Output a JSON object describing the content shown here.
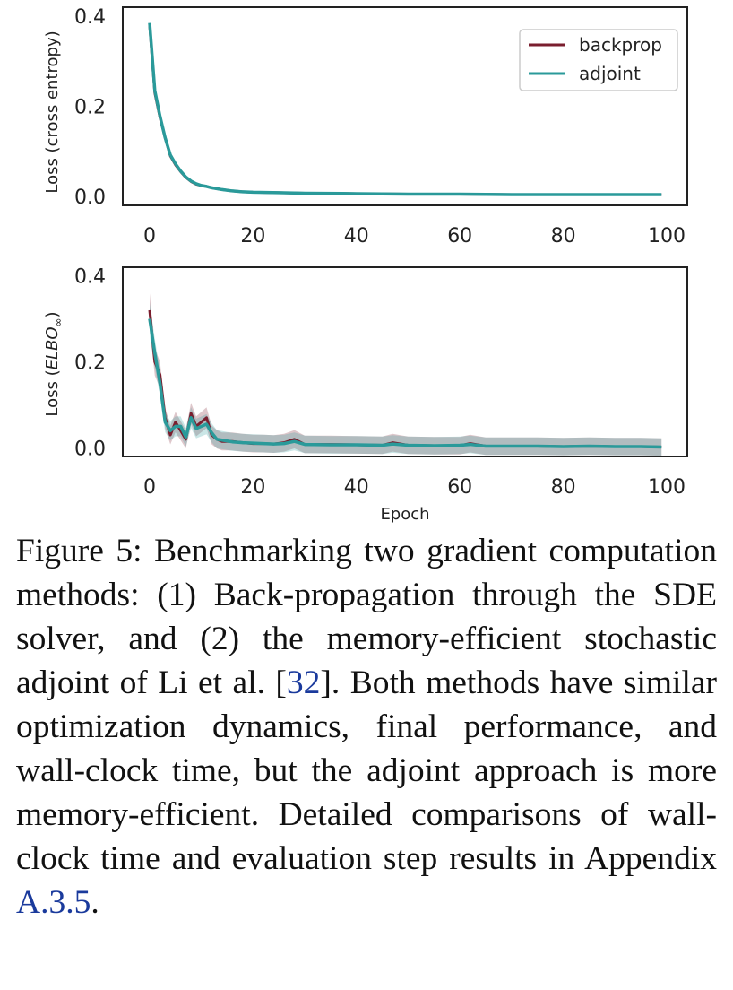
{
  "colors": {
    "backprop": "#7a1e2e",
    "adjoint": "#2a9a9a",
    "axis": "#222222"
  },
  "chart_data": [
    {
      "type": "line",
      "title": "",
      "xlabel": "",
      "ylabel": "Loss (cross entropy)",
      "xlim": [
        0,
        100
      ],
      "ylim": [
        -0.02,
        0.42
      ],
      "xticks": [
        "0",
        "20",
        "40",
        "60",
        "80",
        "100"
      ],
      "yticks": [
        "0.0",
        "0.2",
        "0.4"
      ],
      "legend": {
        "position": "top-right",
        "entries": [
          "backprop",
          "adjoint"
        ]
      },
      "series": [
        {
          "name": "backprop",
          "x": [
            0,
            1,
            2,
            3,
            4,
            5,
            6,
            7,
            8,
            9,
            10,
            11,
            12,
            14,
            16,
            18,
            20,
            25,
            30,
            40,
            50,
            60,
            70,
            80,
            90,
            99
          ],
          "values": [
            0.38,
            0.23,
            0.175,
            0.13,
            0.09,
            0.07,
            0.055,
            0.042,
            0.033,
            0.027,
            0.024,
            0.022,
            0.019,
            0.015,
            0.012,
            0.01,
            0.009,
            0.008,
            0.007,
            0.006,
            0.005,
            0.005,
            0.004,
            0.004,
            0.004,
            0.004
          ]
        },
        {
          "name": "adjoint",
          "x": [
            0,
            1,
            2,
            3,
            4,
            5,
            6,
            7,
            8,
            9,
            10,
            11,
            12,
            14,
            16,
            18,
            20,
            25,
            30,
            40,
            50,
            60,
            70,
            80,
            90,
            99
          ],
          "values": [
            0.385,
            0.235,
            0.178,
            0.13,
            0.092,
            0.072,
            0.056,
            0.043,
            0.034,
            0.028,
            0.024,
            0.022,
            0.019,
            0.015,
            0.012,
            0.01,
            0.009,
            0.008,
            0.007,
            0.006,
            0.005,
            0.005,
            0.004,
            0.004,
            0.004,
            0.004
          ]
        }
      ]
    },
    {
      "type": "line",
      "title": "",
      "xlabel": "Epoch",
      "ylabel_prefix": "Loss (",
      "ylabel_math": "ELBO",
      "ylabel_sub": "∞",
      "ylabel_suffix": ")",
      "xlim": [
        0,
        100
      ],
      "ylim": [
        -0.02,
        0.42
      ],
      "xticks": [
        "0",
        "20",
        "40",
        "60",
        "80",
        "100"
      ],
      "yticks": [
        "0.0",
        "0.2",
        "0.4"
      ],
      "series": [
        {
          "name": "backprop",
          "x": [
            0,
            1,
            2,
            3,
            4,
            5,
            6,
            7,
            8,
            9,
            10,
            11,
            12,
            13,
            14,
            16,
            18,
            20,
            22,
            24,
            26,
            28,
            30,
            35,
            40,
            45,
            47,
            50,
            55,
            60,
            62,
            65,
            70,
            75,
            80,
            85,
            90,
            95,
            99
          ],
          "values": [
            0.32,
            0.2,
            0.17,
            0.07,
            0.03,
            0.06,
            0.04,
            0.02,
            0.08,
            0.05,
            0.06,
            0.07,
            0.03,
            0.02,
            0.015,
            0.015,
            0.012,
            0.01,
            0.01,
            0.009,
            0.012,
            0.02,
            0.008,
            0.008,
            0.007,
            0.006,
            0.012,
            0.006,
            0.005,
            0.005,
            0.01,
            0.004,
            0.004,
            0.004,
            0.003,
            0.004,
            0.003,
            0.003,
            0.002
          ],
          "band": 0.02
        },
        {
          "name": "adjoint",
          "x": [
            0,
            1,
            2,
            3,
            4,
            5,
            6,
            7,
            8,
            9,
            10,
            11,
            12,
            13,
            14,
            16,
            18,
            20,
            22,
            24,
            26,
            28,
            30,
            35,
            40,
            45,
            47,
            50,
            55,
            60,
            62,
            65,
            70,
            75,
            80,
            85,
            90,
            95,
            99
          ],
          "values": [
            0.3,
            0.22,
            0.15,
            0.06,
            0.04,
            0.05,
            0.05,
            0.025,
            0.07,
            0.045,
            0.05,
            0.055,
            0.035,
            0.02,
            0.018,
            0.014,
            0.012,
            0.011,
            0.01,
            0.009,
            0.01,
            0.015,
            0.008,
            0.007,
            0.007,
            0.006,
            0.009,
            0.006,
            0.005,
            0.006,
            0.008,
            0.004,
            0.004,
            0.004,
            0.003,
            0.004,
            0.003,
            0.003,
            0.002
          ],
          "band": 0.02
        }
      ]
    }
  ],
  "caption": {
    "text_before_ref": "Figure 5: Benchmarking two gradient computation methods: (1) Back-propagation through the SDE solver, and (2) the memory-efficient stochastic adjoint of Li et al. [",
    "ref": "32",
    "text_after_ref": "]. Both methods have similar optimization dynamics, final performance, and wall-clock time, but the adjoint approach is more memory-efficient. Detailed comparisons of wall-clock time and evaluation step results in Appendix ",
    "appendix_ref": "A.3.5",
    "end": "."
  }
}
